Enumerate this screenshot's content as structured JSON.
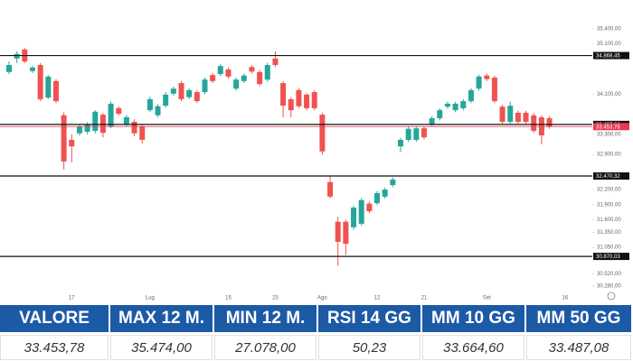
{
  "chart_data": {
    "type": "candlestick",
    "categories": [
      null,
      null,
      null,
      null,
      null,
      null,
      null,
      null,
      "17",
      null,
      null,
      null,
      null,
      null,
      null,
      null,
      null,
      null,
      "Lug",
      null,
      null,
      null,
      null,
      null,
      null,
      null,
      null,
      null,
      "15",
      null,
      null,
      null,
      null,
      null,
      "23",
      null,
      null,
      null,
      null,
      null,
      "Ago",
      null,
      null,
      null,
      null,
      null,
      null,
      "12",
      null,
      null,
      null,
      null,
      null,
      "21",
      null,
      null,
      null,
      null,
      null,
      null,
      null,
      "Set",
      null,
      null,
      null,
      null,
      null,
      null,
      null,
      null,
      null,
      "16"
    ],
    "open": [
      34540,
      34810,
      34990,
      34560,
      34680,
      34030,
      34360,
      33680,
      33190,
      33320,
      33350,
      33370,
      33690,
      33460,
      33820,
      33500,
      33550,
      33460,
      33780,
      33680,
      33870,
      34110,
      34320,
      34040,
      34140,
      34140,
      34480,
      34500,
      34590,
      34210,
      34360,
      34640,
      34540,
      34390,
      34810,
      34320,
      34000,
      34180,
      34090,
      34140,
      33690,
      32350,
      31560,
      31560,
      31450,
      31520,
      31920,
      31930,
      32060,
      32290,
      33060,
      33190,
      33190,
      33420,
      33500,
      33620,
      33850,
      33780,
      33820,
      33960,
      34210,
      34470,
      34430,
      33850,
      33550,
      33730,
      33730,
      33680,
      33640,
      33620,
      null,
      null
    ],
    "high": [
      34750,
      34950,
      35020,
      34660,
      34720,
      34480,
      34400,
      33740,
      33300,
      33500,
      33540,
      33780,
      33720,
      33950,
      33860,
      33680,
      33600,
      33500,
      34050,
      33900,
      34140,
      34250,
      34360,
      34220,
      34180,
      34430,
      34520,
      34700,
      34630,
      34430,
      34510,
      34680,
      34580,
      34720,
      34950,
      34360,
      34040,
      34220,
      34130,
      34180,
      33730,
      32470,
      31660,
      31600,
      31880,
      32030,
      31960,
      32170,
      32240,
      32440,
      33230,
      33450,
      33460,
      33460,
      33660,
      33820,
      33950,
      33950,
      34000,
      34220,
      34490,
      34510,
      34470,
      33890,
      33950,
      33770,
      33770,
      33720,
      33680,
      33660,
      null,
      null
    ],
    "low": [
      34500,
      34720,
      34720,
      34520,
      33960,
      34000,
      33920,
      32600,
      32740,
      33280,
      33300,
      33320,
      33240,
      33420,
      33680,
      33460,
      33260,
      33120,
      33740,
      33640,
      33830,
      34070,
      33960,
      34000,
      33920,
      34100,
      34320,
      34460,
      34410,
      34170,
      34320,
      34510,
      34260,
      34350,
      34640,
      33640,
      33640,
      33820,
      33780,
      33780,
      32900,
      32020,
      30680,
      30900,
      31400,
      31480,
      31730,
      31890,
      32020,
      32250,
      32950,
      33150,
      33150,
      33200,
      33460,
      33580,
      33810,
      33740,
      33780,
      33920,
      34170,
      34360,
      33920,
      33510,
      33510,
      33510,
      33510,
      33330,
      33100,
      33410,
      null,
      null
    ],
    "close": [
      34680,
      34900,
      34750,
      34630,
      34000,
      34450,
      33960,
      32760,
      33060,
      33460,
      33500,
      33750,
      33330,
      33910,
      33710,
      33640,
      33320,
      33190,
      34000,
      33860,
      34090,
      34210,
      34000,
      34180,
      33960,
      34390,
      34360,
      34660,
      34450,
      34390,
      34470,
      34550,
      34300,
      34680,
      34680,
      33870,
      33780,
      33860,
      33820,
      33820,
      32960,
      32060,
      31160,
      31120,
      31840,
      31990,
      31770,
      32130,
      32200,
      32400,
      33190,
      33410,
      33420,
      33240,
      33620,
      33780,
      33910,
      33910,
      33960,
      34180,
      34450,
      34400,
      33960,
      33550,
      33870,
      33550,
      33550,
      33370,
      33280,
      33450,
      null,
      null
    ],
    "up_color": "#26a69a",
    "down_color": "#ef5350",
    "ylim": [
      30135,
      35615
    ],
    "yticks": [
      {
        "value": 35400,
        "label": "35.400,00"
      },
      {
        "value": 35100,
        "label": "35.100,00"
      },
      {
        "value": 34100,
        "label": "34.100,00"
      },
      {
        "value": 33300,
        "label": "33.300,00"
      },
      {
        "value": 32900,
        "label": "32.900,00"
      },
      {
        "value": 32200,
        "label": "32.200,00"
      },
      {
        "value": 31900,
        "label": "31.900,00"
      },
      {
        "value": 31600,
        "label": "31.600,00"
      },
      {
        "value": 31350,
        "label": "31.350,00"
      },
      {
        "value": 31050,
        "label": "31.050,00"
      },
      {
        "value": 30520,
        "label": "30.520,00"
      },
      {
        "value": 30280,
        "label": "30.280,00"
      }
    ],
    "levels": [
      {
        "value": 34868.45,
        "label": "34.868,45",
        "color": "#111111"
      },
      {
        "value": 33497.26,
        "label": "33.497,26",
        "color": "#111111"
      },
      {
        "value": 32470.32,
        "label": "32.470,32",
        "color": "#111111"
      },
      {
        "value": 30870.03,
        "label": "30.870,03",
        "color": "#111111"
      },
      {
        "value": 33453.78,
        "label": "33.453,78",
        "color": "#e53950"
      }
    ]
  },
  "table": {
    "headers": [
      "VALORE",
      "MAX 12 M.",
      "MIN 12 M.",
      "RSI 14 GG",
      "MM 10 GG",
      "MM 50 GG"
    ],
    "values": [
      "33.453,78",
      "35.474,00",
      "27.078,00",
      "50,23",
      "33.664,60",
      "33.487,08"
    ]
  }
}
